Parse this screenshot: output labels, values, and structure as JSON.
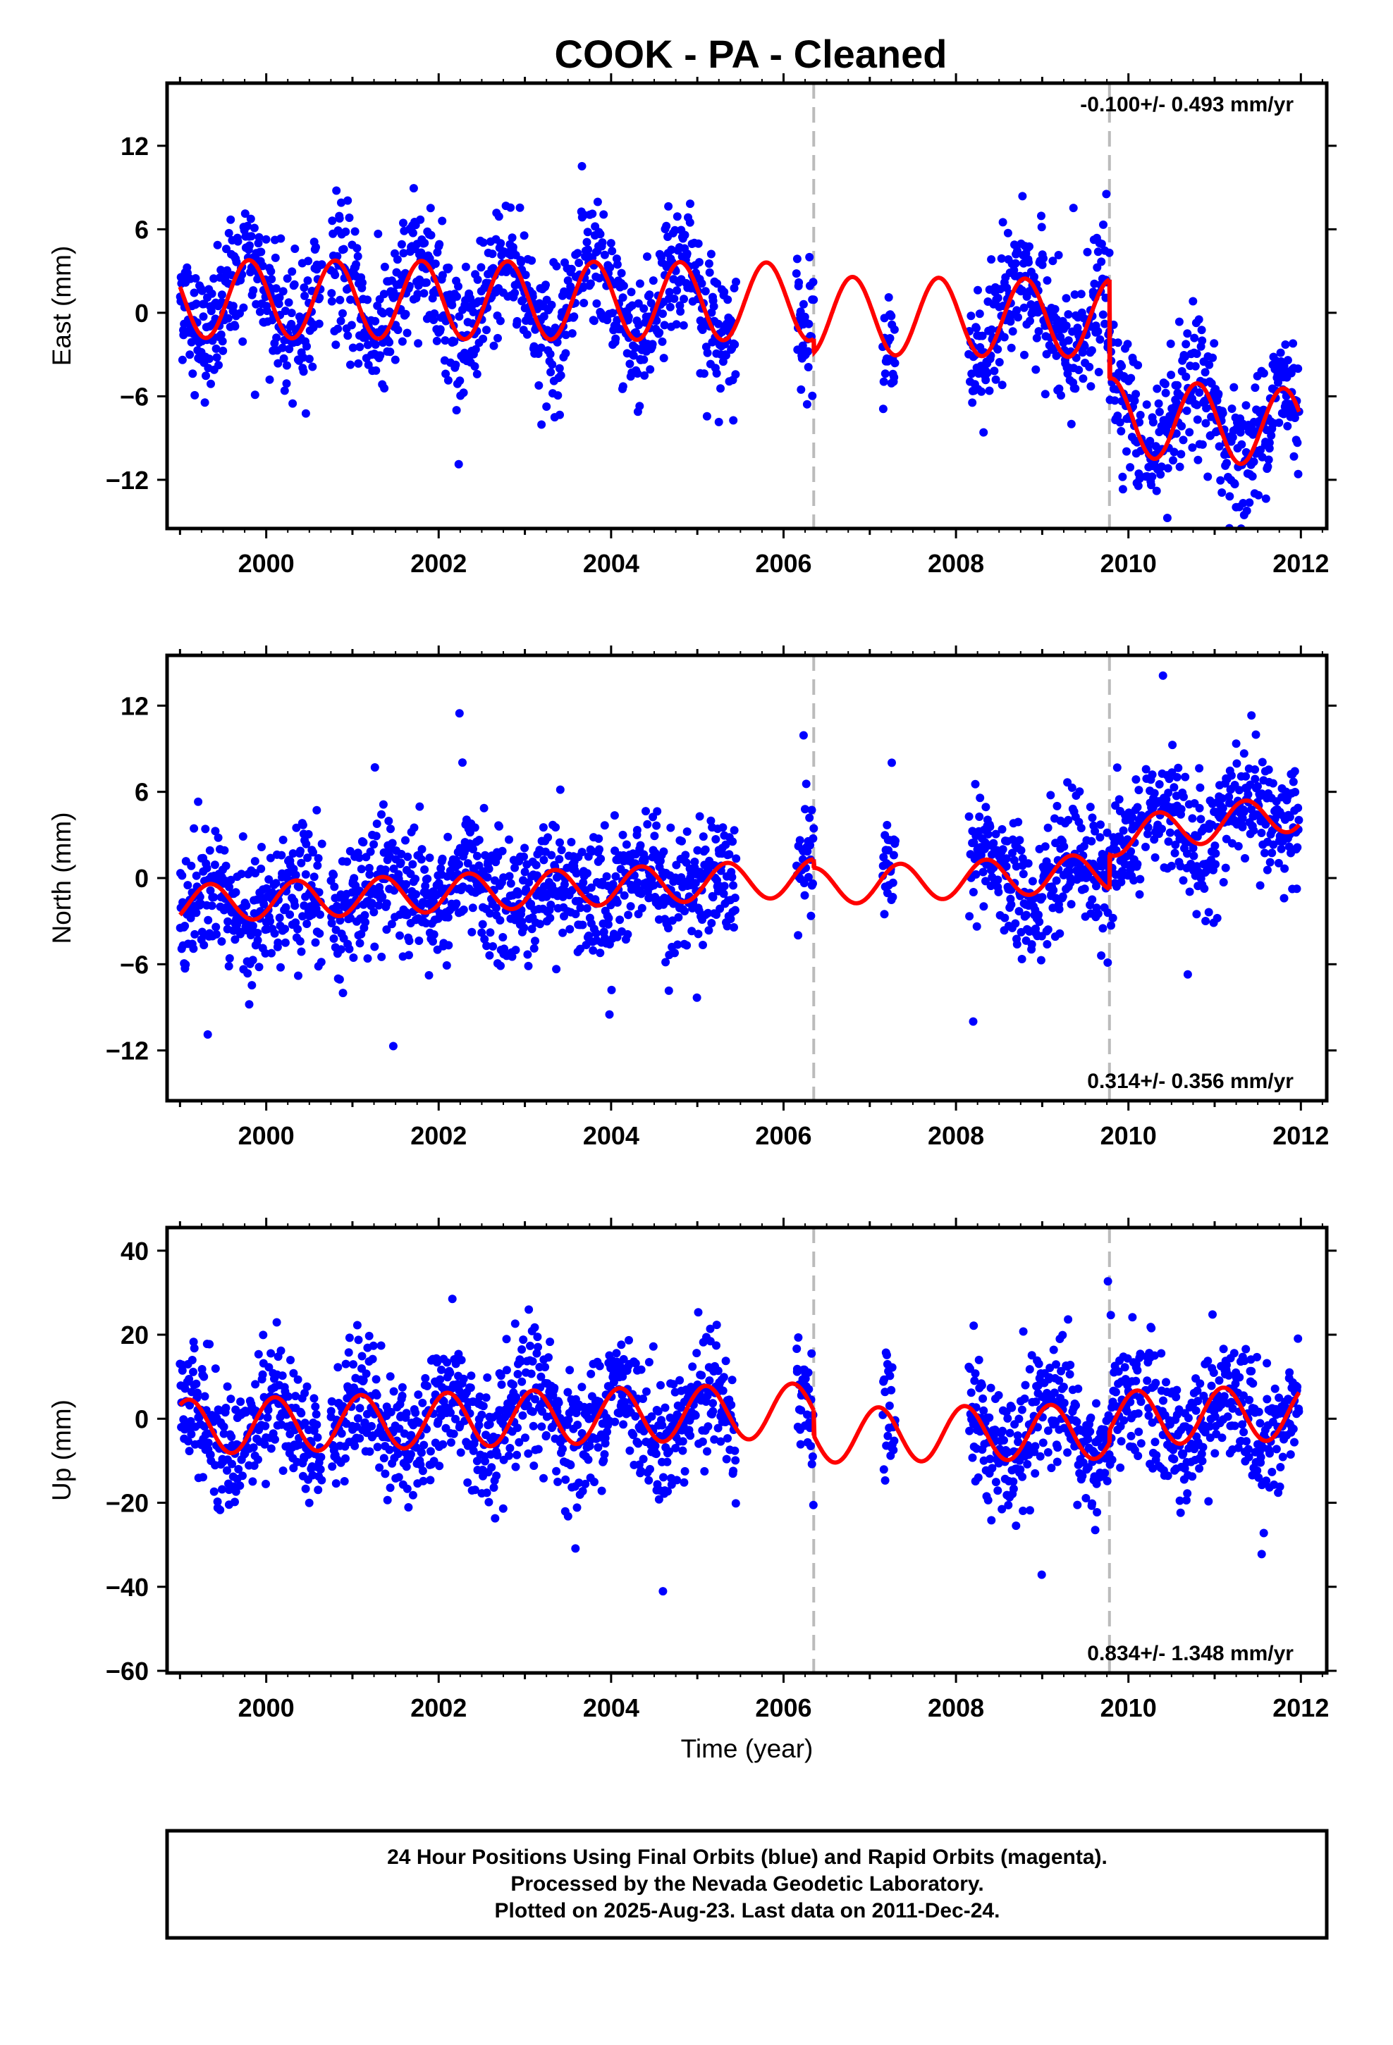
{
  "title": "COOK  - PA - Cleaned",
  "footer": {
    "line1": "24 Hour Positions Using Final Orbits (blue) and Rapid Orbits (magenta).",
    "line2": "Processed by the Nevada Geodetic Laboratory.",
    "line3": "Plotted on 2025-Aug-23. Last data on 2011-Dec-24."
  },
  "colors": {
    "final_orbits": "#0000ff",
    "model_fit": "#ff0000",
    "breaks": "#bbbbbb"
  },
  "chart_data": [
    {
      "type": "scatter",
      "component": "east",
      "ylabel": "East (mm)",
      "xlabel": "",
      "rate_text": "-0.100+/- 0.493 mm/yr",
      "rate_position": "top-right",
      "xlim": [
        1998.85,
        2012.3
      ],
      "ylim": [
        -15.5,
        16.5
      ],
      "yticks": [
        -12,
        -6,
        0,
        6,
        12
      ],
      "xticks": [
        2000,
        2002,
        2004,
        2006,
        2008,
        2010,
        2012
      ],
      "grid": false,
      "breaks": [
        2006.35,
        2009.78
      ],
      "data_segments": [
        [
          1999.0,
          2000.65
        ],
        [
          2000.75,
          2005.45
        ],
        [
          2006.15,
          2006.35
        ],
        [
          2007.15,
          2007.3
        ],
        [
          2008.15,
          2010.15
        ],
        [
          2010.2,
          2011.98
        ]
      ],
      "model": {
        "amplitude": 2.8,
        "phase_year": 2000.55,
        "segments": [
          {
            "start": 1999.0,
            "end": 2006.35,
            "offset_start": 1.0,
            "offset_end": 0.8
          },
          {
            "start": 2006.35,
            "end": 2009.78,
            "offset_start": -0.2,
            "offset_end": -0.4
          },
          {
            "start": 2009.78,
            "end": 2011.98,
            "offset_start": -7.5,
            "offset_end": -8.3
          }
        ]
      },
      "scatter_sd": 2.3
    },
    {
      "type": "scatter",
      "component": "north",
      "ylabel": "North (mm)",
      "xlabel": "",
      "rate_text": "0.314+/- 0.356 mm/yr",
      "rate_position": "bottom-right",
      "xlim": [
        1998.85,
        2012.3
      ],
      "ylim": [
        -15.5,
        15.5
      ],
      "yticks": [
        -12,
        -6,
        0,
        6,
        12
      ],
      "xticks": [
        2000,
        2002,
        2004,
        2006,
        2008,
        2010,
        2012
      ],
      "grid": false,
      "breaks": [
        2006.35,
        2009.78
      ],
      "data_segments": [
        [
          1999.0,
          2000.65
        ],
        [
          2000.75,
          2005.45
        ],
        [
          2006.15,
          2006.35
        ],
        [
          2007.15,
          2007.3
        ],
        [
          2008.15,
          2010.15
        ],
        [
          2010.2,
          2011.98
        ]
      ],
      "model": {
        "amplitude": 1.3,
        "phase_year": 2000.1,
        "segments": [
          {
            "start": 1999.0,
            "end": 2006.35,
            "offset_start": -1.8,
            "offset_end": 0.0
          },
          {
            "start": 2006.35,
            "end": 2009.78,
            "offset_start": -0.6,
            "offset_end": 0.4
          },
          {
            "start": 2009.78,
            "end": 2011.98,
            "offset_start": 2.8,
            "offset_end": 4.6
          }
        ]
      },
      "scatter_sd": 2.2
    },
    {
      "type": "scatter",
      "component": "up",
      "ylabel": "Up (mm)",
      "xlabel": "Time (year)",
      "rate_text": "0.834+/- 1.348 mm/yr",
      "rate_position": "bottom-right",
      "xlim": [
        1998.85,
        2012.3
      ],
      "ylim": [
        -60.5,
        45.5
      ],
      "yticks": [
        -60,
        -40,
        -20,
        0,
        20,
        40
      ],
      "xticks": [
        2000,
        2002,
        2004,
        2006,
        2008,
        2010,
        2012
      ],
      "grid": false,
      "breaks": [
        2006.35,
        2009.78
      ],
      "data_segments": [
        [
          1999.0,
          2000.65
        ],
        [
          2000.75,
          2005.45
        ],
        [
          2006.15,
          2006.35
        ],
        [
          2007.15,
          2007.3
        ],
        [
          2008.15,
          2010.15
        ],
        [
          2010.2,
          2011.98
        ]
      ],
      "model": {
        "amplitude": 6.5,
        "phase_year": 2000.85,
        "segments": [
          {
            "start": 1999.0,
            "end": 2006.35,
            "offset_start": -2.0,
            "offset_end": 2.0
          },
          {
            "start": 2006.35,
            "end": 2009.78,
            "offset_start": -4.0,
            "offset_end": -3.0
          },
          {
            "start": 2009.78,
            "end": 2011.98,
            "offset_start": 0.0,
            "offset_end": 1.5
          }
        ]
      },
      "scatter_sd": 7.5
    }
  ]
}
